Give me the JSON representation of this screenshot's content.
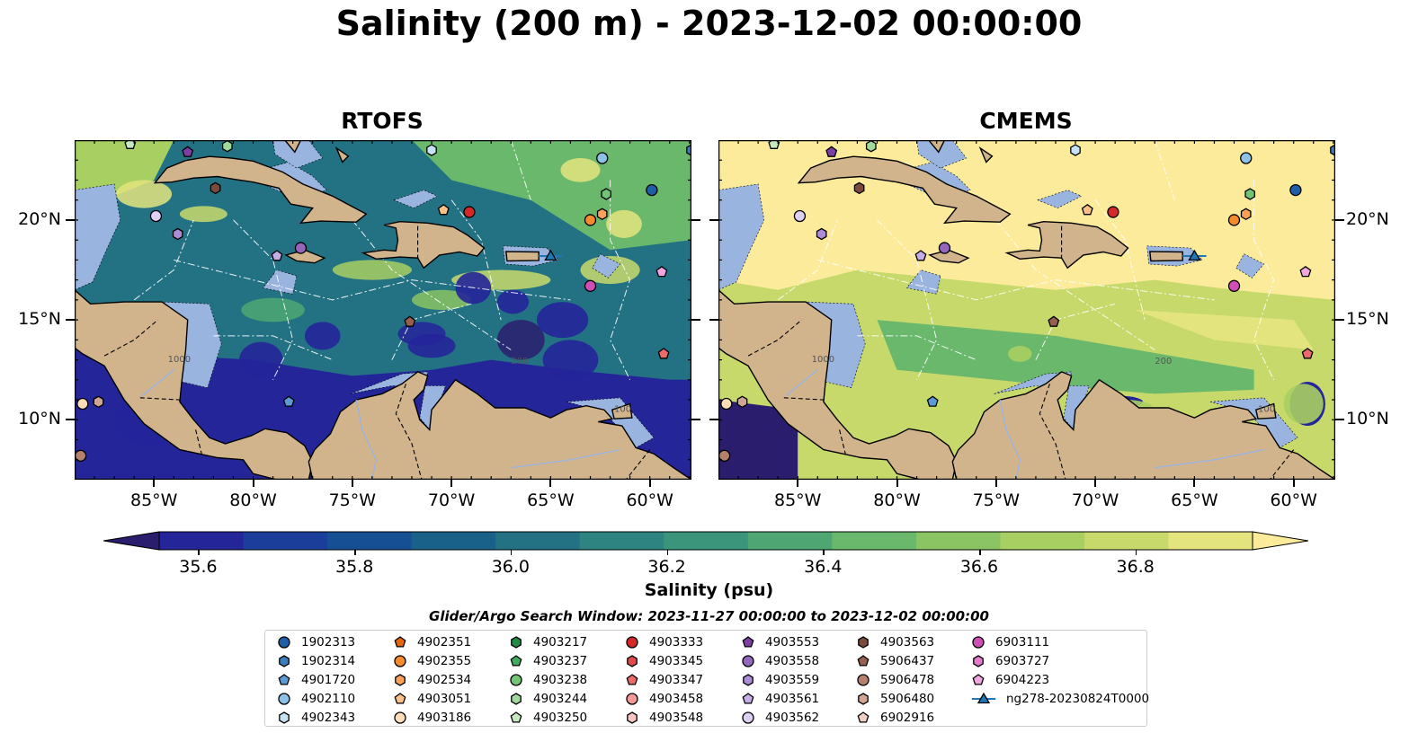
{
  "title": "Salinity (200 m) - 2023-12-02 00:00:00",
  "panels": [
    {
      "title": "RTOFS",
      "model": "rtofs"
    },
    {
      "title": "CMEMS",
      "model": "cmems"
    }
  ],
  "axes": {
    "lon_range": [
      -89.0,
      -57.9
    ],
    "lat_range": [
      7.0,
      24.0
    ],
    "x_ticks": [
      "85°W",
      "80°W",
      "75°W",
      "70°W",
      "65°W",
      "60°W"
    ],
    "x_tick_values": [
      -85,
      -80,
      -75,
      -70,
      -65,
      -60
    ],
    "y_ticks": [
      "20°N",
      "15°N",
      "10°N"
    ],
    "y_tick_values": [
      20,
      15,
      10
    ],
    "contour_labels": [
      "1000",
      "100",
      "200"
    ]
  },
  "colorbar": {
    "label": "Salinity (psu)",
    "min": 35.55,
    "max": 36.95,
    "ticks": [
      "35.6",
      "35.8",
      "36.0",
      "36.2",
      "36.4",
      "36.6",
      "36.8"
    ],
    "tick_values": [
      35.6,
      35.8,
      36.0,
      36.2,
      36.4,
      36.6,
      36.8
    ],
    "colors": [
      "#2a1d6e",
      "#25259a",
      "#1b3e9a",
      "#164f93",
      "#1a6189",
      "#237284",
      "#2e8480",
      "#3a957a",
      "#4ea772",
      "#69b86c",
      "#8ac463",
      "#a8cf62",
      "#c8d96b",
      "#e4e47e",
      "#fbeb9a"
    ],
    "extend": "both"
  },
  "land_color": "#d2b48c",
  "shelf_color": "#9ab4e0",
  "legend": {
    "title": "Glider/Argo Search Window: 2023-11-27 00:00:00 to 2023-12-02 00:00:00",
    "items": [
      {
        "label": "1902313",
        "color": "#1f5fa8",
        "marker": "circle"
      },
      {
        "label": "1902314",
        "color": "#3a7ebf",
        "marker": "hexagon"
      },
      {
        "label": "4901720",
        "color": "#5b9bd5",
        "marker": "pentagon"
      },
      {
        "label": "4902110",
        "color": "#8cc1e8",
        "marker": "circle"
      },
      {
        "label": "4902343",
        "color": "#c6e2f5",
        "marker": "hexagon"
      },
      {
        "label": "4902351",
        "color": "#e6660a",
        "marker": "pentagon"
      },
      {
        "label": "4902355",
        "color": "#f58b2c",
        "marker": "circle"
      },
      {
        "label": "4902534",
        "color": "#fba05a",
        "marker": "hexagon"
      },
      {
        "label": "4903051",
        "color": "#fcc089",
        "marker": "pentagon"
      },
      {
        "label": "4903186",
        "color": "#fddcb8",
        "marker": "circle"
      },
      {
        "label": "4903217",
        "color": "#238b45",
        "marker": "hexagon"
      },
      {
        "label": "4903237",
        "color": "#41ab5d",
        "marker": "pentagon"
      },
      {
        "label": "4903238",
        "color": "#74c476",
        "marker": "circle"
      },
      {
        "label": "4903244",
        "color": "#a1d99b",
        "marker": "hexagon"
      },
      {
        "label": "4903250",
        "color": "#c7e9c0",
        "marker": "pentagon"
      },
      {
        "label": "4903333",
        "color": "#d62728",
        "marker": "circle"
      },
      {
        "label": "4903345",
        "color": "#e04a4a",
        "marker": "hexagon"
      },
      {
        "label": "4903347",
        "color": "#eb6a6a",
        "marker": "pentagon"
      },
      {
        "label": "4903458",
        "color": "#f29a9a",
        "marker": "circle"
      },
      {
        "label": "4903548",
        "color": "#f8c4c4",
        "marker": "hexagon"
      },
      {
        "label": "4903553",
        "color": "#7b3fa6",
        "marker": "pentagon"
      },
      {
        "label": "4903558",
        "color": "#9467bd",
        "marker": "circle"
      },
      {
        "label": "4903559",
        "color": "#ad8bd6",
        "marker": "hexagon"
      },
      {
        "label": "4903561",
        "color": "#c6aee6",
        "marker": "pentagon"
      },
      {
        "label": "4903562",
        "color": "#ddd0f2",
        "marker": "circle"
      },
      {
        "label": "4903563",
        "color": "#7a4b3c",
        "marker": "hexagon"
      },
      {
        "label": "5906437",
        "color": "#965f4e",
        "marker": "pentagon"
      },
      {
        "label": "5906478",
        "color": "#b5806c",
        "marker": "circle"
      },
      {
        "label": "5906480",
        "color": "#d1a593",
        "marker": "hexagon"
      },
      {
        "label": "6902916",
        "color": "#f0cfc3",
        "marker": "pentagon"
      },
      {
        "label": "6903111",
        "color": "#d04fb7",
        "marker": "circle"
      },
      {
        "label": "6903727",
        "color": "#e27ccb",
        "marker": "hexagon"
      },
      {
        "label": "6904223",
        "color": "#f0a6de",
        "marker": "pentagon"
      },
      {
        "label": "ng278-20230824T0000",
        "color": "#1f77b4",
        "marker": "glider"
      }
    ]
  },
  "platforms": [
    {
      "id": "4903562",
      "lon": -84.9,
      "lat": 20.2,
      "color": "#ddd0f2",
      "marker": "circle"
    },
    {
      "id": "4903553",
      "lon": -83.3,
      "lat": 23.4,
      "color": "#7b3fa6",
      "marker": "pentagon"
    },
    {
      "id": "4903559",
      "lon": -83.8,
      "lat": 19.3,
      "color": "#ad8bd6",
      "marker": "hexagon"
    },
    {
      "id": "4903244",
      "lon": -81.3,
      "lat": 23.7,
      "color": "#a1d99b",
      "marker": "hexagon"
    },
    {
      "id": "4903563",
      "lon": -81.9,
      "lat": 21.6,
      "color": "#7a4b3c",
      "marker": "hexagon"
    },
    {
      "id": "4903250",
      "lon": -86.2,
      "lat": 23.8,
      "color": "#c7e9c0",
      "marker": "pentagon"
    },
    {
      "id": "4903561",
      "lon": -78.8,
      "lat": 18.2,
      "color": "#c6aee6",
      "marker": "pentagon"
    },
    {
      "id": "4903558",
      "lon": -77.6,
      "lat": 18.6,
      "color": "#9467bd",
      "marker": "circle"
    },
    {
      "id": "4901720",
      "lon": -78.2,
      "lat": 10.9,
      "color": "#5b9bd5",
      "marker": "pentagon"
    },
    {
      "id": "5906437",
      "lon": -72.1,
      "lat": 14.9,
      "color": "#965f4e",
      "marker": "pentagon"
    },
    {
      "id": "4902343",
      "lon": -71.0,
      "lat": 23.5,
      "color": "#c6e2f5",
      "marker": "hexagon"
    },
    {
      "id": "4903051",
      "lon": -70.4,
      "lat": 20.5,
      "color": "#fcc089",
      "marker": "pentagon"
    },
    {
      "id": "4903333",
      "lon": -69.1,
      "lat": 20.4,
      "color": "#d62728",
      "marker": "circle"
    },
    {
      "id": "ng278-20230824T0000",
      "lon": -65.0,
      "lat": 18.2,
      "color": "#1f77b4",
      "marker": "glider"
    },
    {
      "id": "4902110",
      "lon": -62.4,
      "lat": 23.1,
      "color": "#8cc1e8",
      "marker": "circle"
    },
    {
      "id": "4903238",
      "lon": -62.2,
      "lat": 21.3,
      "color": "#74c476",
      "marker": "hexagon"
    },
    {
      "id": "4902355",
      "lon": -63.0,
      "lat": 20.0,
      "color": "#f58b2c",
      "marker": "circle"
    },
    {
      "id": "4902534",
      "lon": -62.4,
      "lat": 20.3,
      "color": "#fba05a",
      "marker": "hexagon"
    },
    {
      "id": "1902313",
      "lon": -59.9,
      "lat": 21.5,
      "color": "#1f5fa8",
      "marker": "circle"
    },
    {
      "id": "6904223",
      "lon": -59.4,
      "lat": 17.4,
      "color": "#f0a6de",
      "marker": "pentagon"
    },
    {
      "id": "6903111",
      "lon": -63.0,
      "lat": 16.7,
      "color": "#d04fb7",
      "marker": "circle"
    },
    {
      "id": "4903347",
      "lon": -59.3,
      "lat": 13.3,
      "color": "#eb6a6a",
      "marker": "pentagon"
    },
    {
      "id": "5906478",
      "lon": -88.7,
      "lat": 8.2,
      "color": "#b5806c",
      "marker": "circle"
    },
    {
      "id": "4903186",
      "lon": -88.6,
      "lat": 10.8,
      "color": "#fddcb8",
      "marker": "circle"
    },
    {
      "id": "5906480",
      "lon": -87.8,
      "lat": 10.9,
      "color": "#d1a593",
      "marker": "hexagon"
    },
    {
      "id": "1902314",
      "lon": -57.9,
      "lat": 23.5,
      "color": "#3a7ebf",
      "marker": "hexagon"
    }
  ]
}
